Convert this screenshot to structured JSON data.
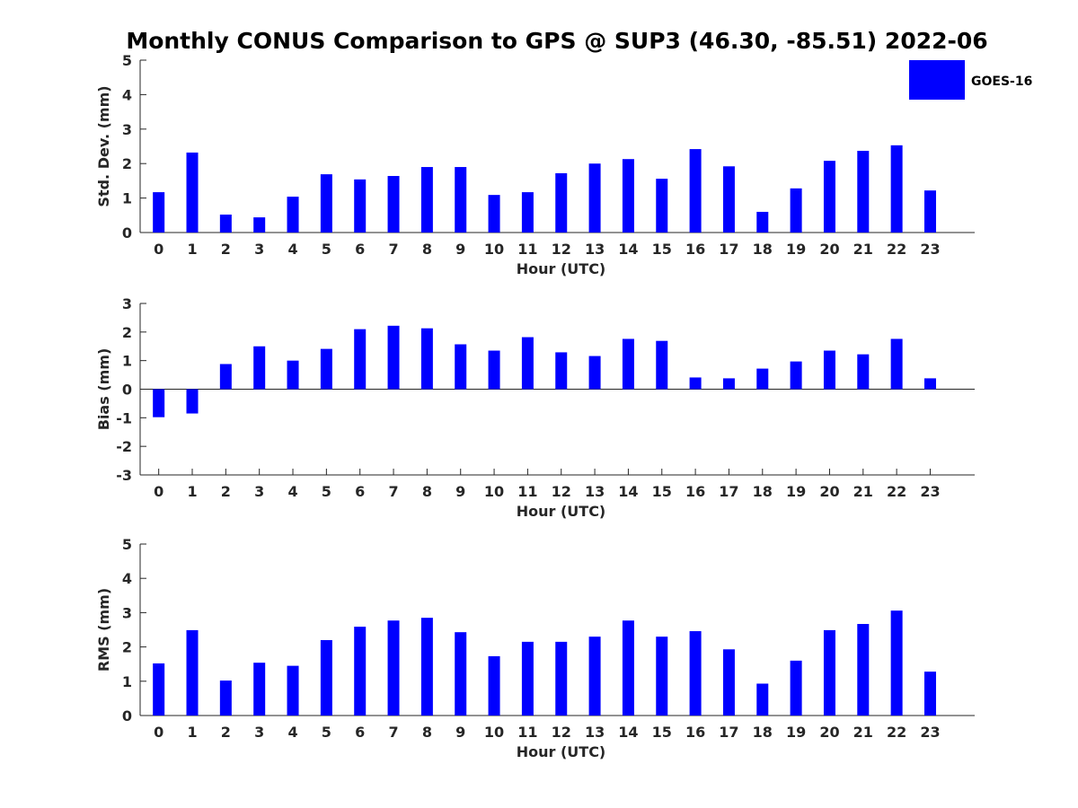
{
  "chart_data": {
    "title": "Monthly CONUS Comparison to GPS @ SUP3 (46.30, -85.51) 2022-06",
    "legend": {
      "label": "GOES-16",
      "color": "#0000ff",
      "placement": "top-right"
    },
    "bar_color": "#0000ff",
    "panels": [
      {
        "type": "bar",
        "xlabel": "Hour (UTC)",
        "ylabel": "Std. Dev. (mm)",
        "ylim": [
          0,
          5
        ],
        "yticks": [
          0,
          1,
          2,
          3,
          4,
          5
        ],
        "categories": [
          "0",
          "1",
          "2",
          "3",
          "4",
          "5",
          "6",
          "7",
          "8",
          "9",
          "10",
          "11",
          "12",
          "13",
          "14",
          "15",
          "16",
          "17",
          "18",
          "19",
          "20",
          "21",
          "22",
          "23"
        ],
        "values": [
          1.17,
          2.32,
          0.52,
          0.44,
          1.04,
          1.69,
          1.54,
          1.64,
          1.9,
          1.9,
          1.09,
          1.17,
          1.72,
          2.0,
          2.13,
          1.56,
          2.42,
          1.92,
          0.6,
          1.28,
          2.08,
          2.37,
          2.53,
          1.22
        ]
      },
      {
        "type": "bar",
        "xlabel": "Hour (UTC)",
        "ylabel": "Bias (mm)",
        "ylim": [
          -3,
          3
        ],
        "yticks": [
          -3,
          -2,
          -1,
          0,
          1,
          2,
          3
        ],
        "categories": [
          "0",
          "1",
          "2",
          "3",
          "4",
          "5",
          "6",
          "7",
          "8",
          "9",
          "10",
          "11",
          "12",
          "13",
          "14",
          "15",
          "16",
          "17",
          "18",
          "19",
          "20",
          "21",
          "22",
          "23"
        ],
        "values": [
          -0.98,
          -0.85,
          0.88,
          1.5,
          1.0,
          1.41,
          2.1,
          2.22,
          2.13,
          1.57,
          1.35,
          1.82,
          1.29,
          1.16,
          1.76,
          1.69,
          0.41,
          0.38,
          0.72,
          0.97,
          1.35,
          1.22,
          1.76,
          0.38
        ]
      },
      {
        "type": "bar",
        "xlabel": "Hour (UTC)",
        "ylabel": "RMS (mm)",
        "ylim": [
          0,
          5
        ],
        "yticks": [
          0,
          1,
          2,
          3,
          4,
          5
        ],
        "categories": [
          "0",
          "1",
          "2",
          "3",
          "4",
          "5",
          "6",
          "7",
          "8",
          "9",
          "10",
          "11",
          "12",
          "13",
          "14",
          "15",
          "16",
          "17",
          "18",
          "19",
          "20",
          "21",
          "22",
          "23"
        ],
        "values": [
          1.52,
          2.49,
          1.02,
          1.54,
          1.45,
          2.2,
          2.59,
          2.77,
          2.85,
          2.43,
          1.73,
          2.15,
          2.15,
          2.3,
          2.77,
          2.3,
          2.46,
          1.93,
          0.93,
          1.6,
          2.49,
          2.67,
          3.06,
          1.28
        ]
      }
    ]
  }
}
